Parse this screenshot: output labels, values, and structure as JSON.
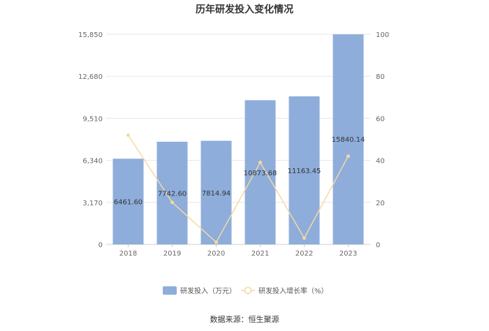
{
  "chart_data": {
    "type": "bar",
    "title": "历年研发投入变化情况",
    "categories": [
      "2018",
      "2019",
      "2020",
      "2021",
      "2022",
      "2023"
    ],
    "series": [
      {
        "name": "研发投入（万元）",
        "type": "bar",
        "axis": "left",
        "color": "#8eaddb",
        "values": [
          6461.6,
          7742.6,
          7814.94,
          10873.68,
          11163.45,
          15840.14
        ],
        "labels": [
          "6461.60",
          "7742.60",
          "7814.94",
          "10873.68",
          "11163.45",
          "15840.14"
        ]
      },
      {
        "name": "研发投入增长率（%）",
        "type": "line",
        "axis": "right",
        "color": "#f5d9a0",
        "values": [
          52,
          20,
          1,
          39,
          3,
          42
        ]
      }
    ],
    "y_left": {
      "min": 0,
      "max": 15850,
      "ticks": [
        0,
        3170,
        6340,
        9510,
        12680,
        15850
      ],
      "tick_labels": [
        "0",
        "3,170",
        "6,340",
        "9,510",
        "12,680",
        "15,850"
      ]
    },
    "y_right": {
      "min": 0,
      "max": 100,
      "ticks": [
        0,
        20,
        40,
        60,
        80,
        100
      ],
      "tick_labels": [
        "0",
        "20",
        "40",
        "60",
        "80",
        "100"
      ]
    },
    "grid": true,
    "legend_position": "bottom"
  },
  "source": "数据来源：恒生聚源"
}
